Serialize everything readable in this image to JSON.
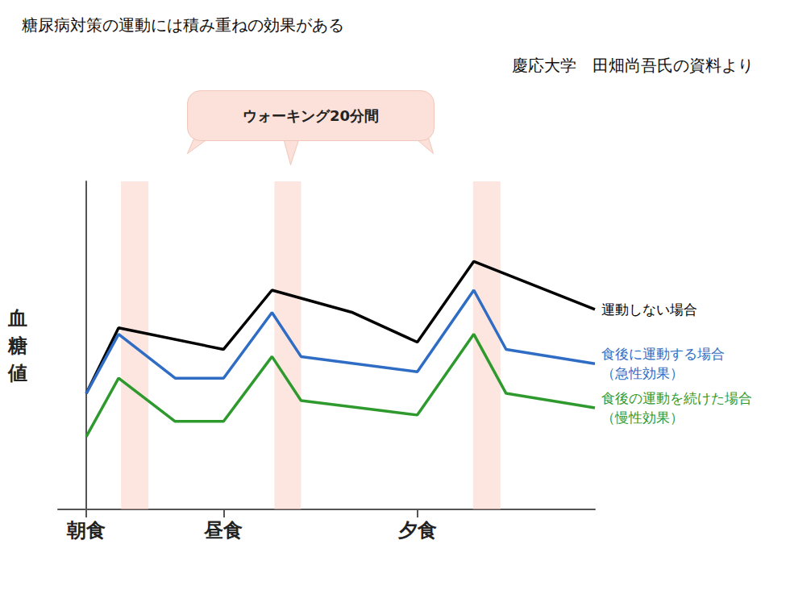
{
  "chart_data": {
    "type": "line",
    "title": "糖尿病対策の運動には積み重ねの効果がある",
    "subtitle": "慶応大学　田畑尚吾氏の資料より",
    "annotation": "ウォーキング20分間",
    "y_label": "血糖値",
    "xlim": [
      -3.5,
      63
    ],
    "xticks": [
      {
        "value": 0,
        "label": "朝食"
      },
      {
        "value": 17,
        "label": "昼食"
      },
      {
        "value": 41,
        "label": "夕食"
      }
    ],
    "ylim": [
      0,
      41
    ],
    "tick_labels": "x",
    "grid": false,
    "walking_periods": [
      [
        4.3,
        7.7
      ],
      [
        23.3,
        26.6
      ],
      [
        47.9,
        51.3
      ]
    ],
    "series": [
      {
        "name": "運動しない場合",
        "color": "#000000",
        "x": [
          0,
          4,
          17,
          23,
          33,
          41,
          48,
          63
        ],
        "values": [
          14.5,
          22.7,
          20,
          27.4,
          24.6,
          20.9,
          31,
          25
        ]
      },
      {
        "name": "食後に運動する場合（急性効果）",
        "color": "#2f6cc4",
        "x": [
          0,
          4,
          11,
          17,
          23,
          26.6,
          41,
          48,
          52,
          63
        ],
        "values": [
          14.5,
          21.9,
          16.4,
          16.4,
          24.6,
          19.1,
          17.2,
          27.4,
          20,
          18.2
        ]
      },
      {
        "name": "食後の運動を続けた場合（慢性効果）",
        "color": "#2e9a2e",
        "x": [
          0,
          4,
          11,
          17,
          23,
          26.6,
          41,
          48,
          52,
          63
        ],
        "values": [
          9.1,
          16.4,
          11,
          11,
          19.1,
          13.6,
          11.8,
          21.9,
          14.5,
          12.7
        ]
      }
    ]
  }
}
